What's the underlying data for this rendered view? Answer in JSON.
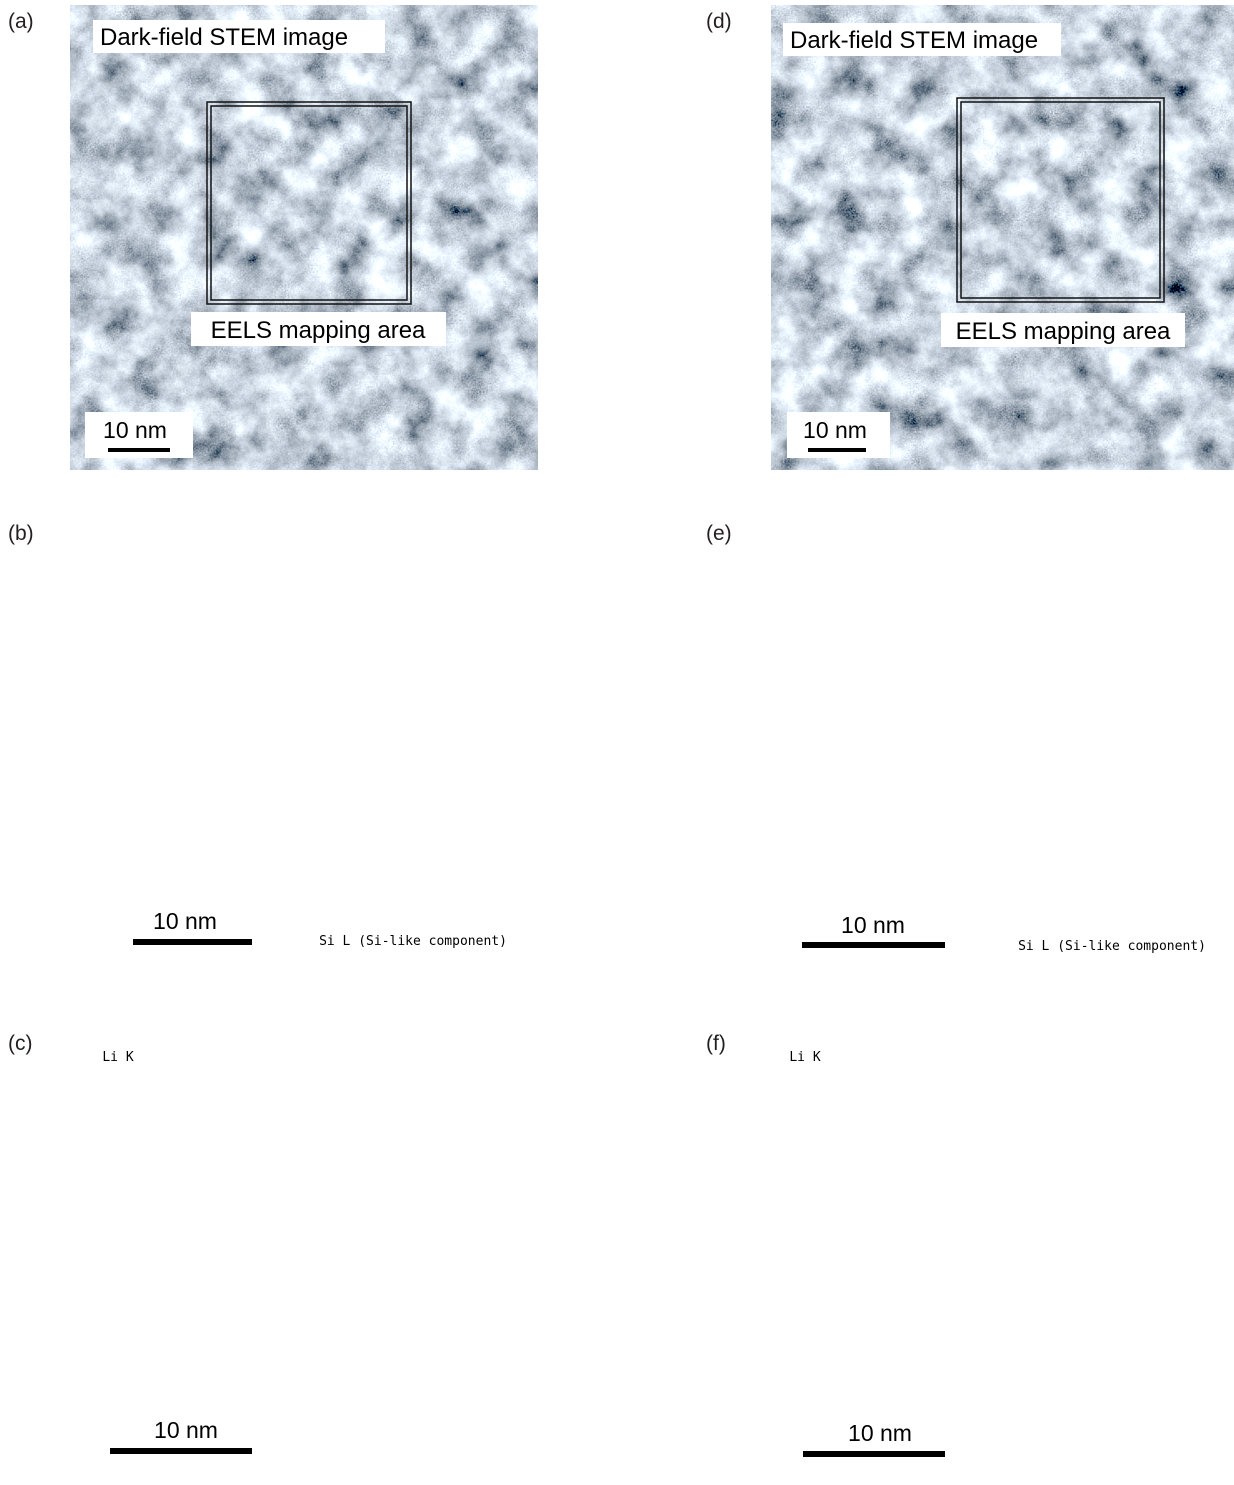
{
  "panels": [
    {
      "label": "(a)",
      "title": "Dark-field STEM image",
      "area_label": "EELS mapping area",
      "scale_bar": "10 nm"
    },
    {
      "label": "(b)",
      "scale_bar": "10 nm",
      "caption": "Si L (Si-like component)"
    },
    {
      "label": "(c)",
      "element": "Li K",
      "scale_bar": "10 nm"
    },
    {
      "label": "(d)",
      "title": "Dark-field STEM image",
      "area_label": "EELS mapping area",
      "scale_bar": "10 nm"
    },
    {
      "label": "(e)",
      "scale_bar": "10 nm",
      "caption": "Si L (Si-like component)"
    },
    {
      "label": "(f)",
      "element": "Li K",
      "scale_bar": "10 nm"
    }
  ]
}
